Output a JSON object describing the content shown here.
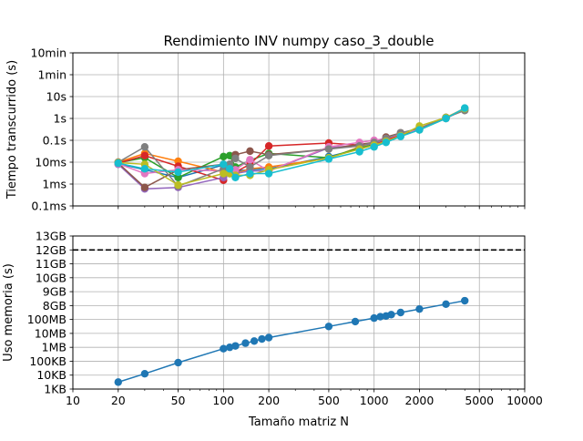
{
  "chart_data": [
    {
      "type": "line",
      "title": "Rendimiento INV numpy caso_3_double",
      "xlabel": "",
      "ylabel": "Tiempo transcurrido (s)",
      "xscale": "log",
      "yscale": "log",
      "xlim": [
        10,
        10000
      ],
      "ylim": [
        0.0001,
        600
      ],
      "grid": true,
      "x_tick_labels_shown": false,
      "y_ticks": [
        {
          "value": 0.0001,
          "label": "0.1ms"
        },
        {
          "value": 0.001,
          "label": "1ms"
        },
        {
          "value": 0.01,
          "label": "10ms"
        },
        {
          "value": 0.1,
          "label": "0.1s"
        },
        {
          "value": 1,
          "label": "1s"
        },
        {
          "value": 10,
          "label": "10s"
        },
        {
          "value": 60,
          "label": "1min"
        },
        {
          "value": 600,
          "label": "10min"
        }
      ],
      "series": [
        {
          "color": "#1f77b4",
          "x": [
            20,
            30,
            50,
            100,
            110,
            120,
            150,
            200,
            500,
            800,
            1000,
            1200,
            1500,
            2000,
            3000,
            4000
          ],
          "y": [
            0.0085,
            0.0045,
            0.002,
            0.0075,
            0.0055,
            0.004,
            0.0045,
            0.005,
            0.018,
            0.04,
            0.06,
            0.09,
            0.17,
            0.33,
            1.05,
            2.8
          ]
        },
        {
          "color": "#ff7f0e",
          "x": [
            20,
            30,
            50,
            100,
            110,
            120,
            150,
            200,
            500,
            800,
            1000,
            1200,
            1500,
            2000,
            3000,
            4000
          ],
          "y": [
            0.01,
            0.025,
            0.011,
            0.0035,
            0.004,
            0.003,
            0.005,
            0.006,
            0.015,
            0.05,
            0.08,
            0.1,
            0.18,
            0.36,
            1.1,
            2.9
          ]
        },
        {
          "color": "#2ca02c",
          "x": [
            20,
            30,
            50,
            100,
            110,
            120,
            150,
            200,
            500,
            800,
            1000,
            1200,
            1500,
            2000,
            3000,
            4000
          ],
          "y": [
            0.0095,
            0.016,
            0.002,
            0.018,
            0.02,
            0.006,
            0.012,
            0.025,
            0.016,
            0.045,
            0.065,
            0.095,
            0.17,
            0.3,
            1.0,
            2.7
          ]
        },
        {
          "color": "#d62728",
          "x": [
            20,
            30,
            50,
            100,
            110,
            120,
            150,
            200,
            500,
            800,
            1000,
            1200,
            1500,
            2000,
            3000,
            4000
          ],
          "y": [
            0.009,
            0.02,
            0.0065,
            0.0015,
            0.004,
            0.0035,
            0.008,
            0.055,
            0.075,
            0.06,
            0.07,
            0.1,
            0.19,
            0.32,
            1.05,
            2.6
          ]
        },
        {
          "color": "#9467bd",
          "x": [
            20,
            30,
            50,
            100,
            110,
            120,
            150,
            200,
            500,
            800,
            1000,
            1200,
            1500,
            2000,
            3000,
            4000
          ],
          "y": [
            0.008,
            0.0006,
            0.0007,
            0.002,
            0.003,
            0.003,
            0.004,
            0.004,
            0.045,
            0.06,
            0.07,
            0.12,
            0.2,
            0.35,
            1.1,
            2.8
          ]
        },
        {
          "color": "#8c564b",
          "x": [
            20,
            30,
            50,
            100,
            110,
            120,
            150,
            200,
            500,
            800,
            1000,
            1200,
            1500,
            2000,
            3000,
            4000
          ],
          "y": [
            0.009,
            0.0007,
            0.0045,
            0.008,
            0.008,
            0.022,
            0.032,
            0.022,
            0.04,
            0.065,
            0.08,
            0.14,
            0.22,
            0.33,
            1.1,
            2.5
          ]
        },
        {
          "color": "#e377c2",
          "x": [
            20,
            30,
            50,
            100,
            110,
            120,
            150,
            200,
            500,
            800,
            1000,
            1200,
            1500,
            2000,
            3000,
            4000
          ],
          "y": [
            0.0085,
            0.003,
            0.0045,
            0.004,
            0.005,
            0.0045,
            0.013,
            0.004,
            0.05,
            0.08,
            0.1,
            0.12,
            0.2,
            0.32,
            1.0,
            2.7
          ]
        },
        {
          "color": "#7f7f7f",
          "x": [
            20,
            30,
            50,
            100,
            110,
            120,
            150,
            200,
            500,
            800,
            1000,
            1200,
            1500,
            2000,
            3000,
            4000
          ],
          "y": [
            0.01,
            0.05,
            0.0008,
            0.005,
            0.008,
            0.015,
            0.006,
            0.02,
            0.04,
            0.055,
            0.08,
            0.12,
            0.22,
            0.35,
            1.1,
            2.3
          ]
        },
        {
          "color": "#bcbd22",
          "x": [
            20,
            30,
            50,
            100,
            110,
            120,
            150,
            200,
            500,
            800,
            1000,
            1200,
            1500,
            2000,
            3000,
            4000
          ],
          "y": [
            0.0095,
            0.008,
            0.0009,
            0.003,
            0.003,
            0.0025,
            0.0025,
            0.0045,
            0.016,
            0.04,
            0.06,
            0.09,
            0.16,
            0.45,
            1.1,
            2.8
          ]
        },
        {
          "color": "#17becf",
          "x": [
            20,
            30,
            50,
            100,
            110,
            120,
            150,
            200,
            500,
            800,
            1000,
            1200,
            1500,
            2000,
            3000,
            4000
          ],
          "y": [
            0.009,
            0.005,
            0.0035,
            0.008,
            0.005,
            0.002,
            0.003,
            0.003,
            0.014,
            0.03,
            0.05,
            0.08,
            0.15,
            0.3,
            1.0,
            3.0
          ]
        }
      ]
    },
    {
      "type": "line",
      "title": "",
      "xlabel": "Tamaño matriz N",
      "ylabel": "Uso memoria (s)",
      "xscale": "log",
      "xlim": [
        10,
        10000
      ],
      "grid": true,
      "x_ticks": [
        {
          "value": 10,
          "label": "10"
        },
        {
          "value": 20,
          "label": "20"
        },
        {
          "value": 50,
          "label": "50"
        },
        {
          "value": 100,
          "label": "100"
        },
        {
          "value": 200,
          "label": "200"
        },
        {
          "value": 500,
          "label": "500"
        },
        {
          "value": 1000,
          "label": "1000"
        },
        {
          "value": 2000,
          "label": "2000"
        },
        {
          "value": 5000,
          "label": "5000"
        },
        {
          "value": 10000,
          "label": "10000"
        }
      ],
      "y_ticks": [
        "1KB",
        "10KB",
        "100KB",
        "1MB",
        "10MB",
        "100MB",
        "8GB",
        "9GB",
        "10GB",
        "11GB",
        "12GB",
        "13GB"
      ],
      "reference_line": {
        "label_tick": "12GB",
        "style": "dashed",
        "color": "#000000"
      },
      "series": [
        {
          "color": "#1f77b4",
          "x": [
            20,
            30,
            50,
            100,
            110,
            120,
            140,
            160,
            180,
            200,
            500,
            750,
            1000,
            1100,
            1200,
            1300,
            1500,
            2000,
            3000,
            4000
          ],
          "y_tick_position": [
            0.5,
            1.1,
            1.9,
            2.9,
            3.0,
            3.1,
            3.3,
            3.45,
            3.6,
            3.7,
            4.5,
            4.85,
            5.1,
            5.2,
            5.25,
            5.35,
            5.5,
            5.75,
            6.1,
            6.35
          ]
        }
      ]
    }
  ]
}
